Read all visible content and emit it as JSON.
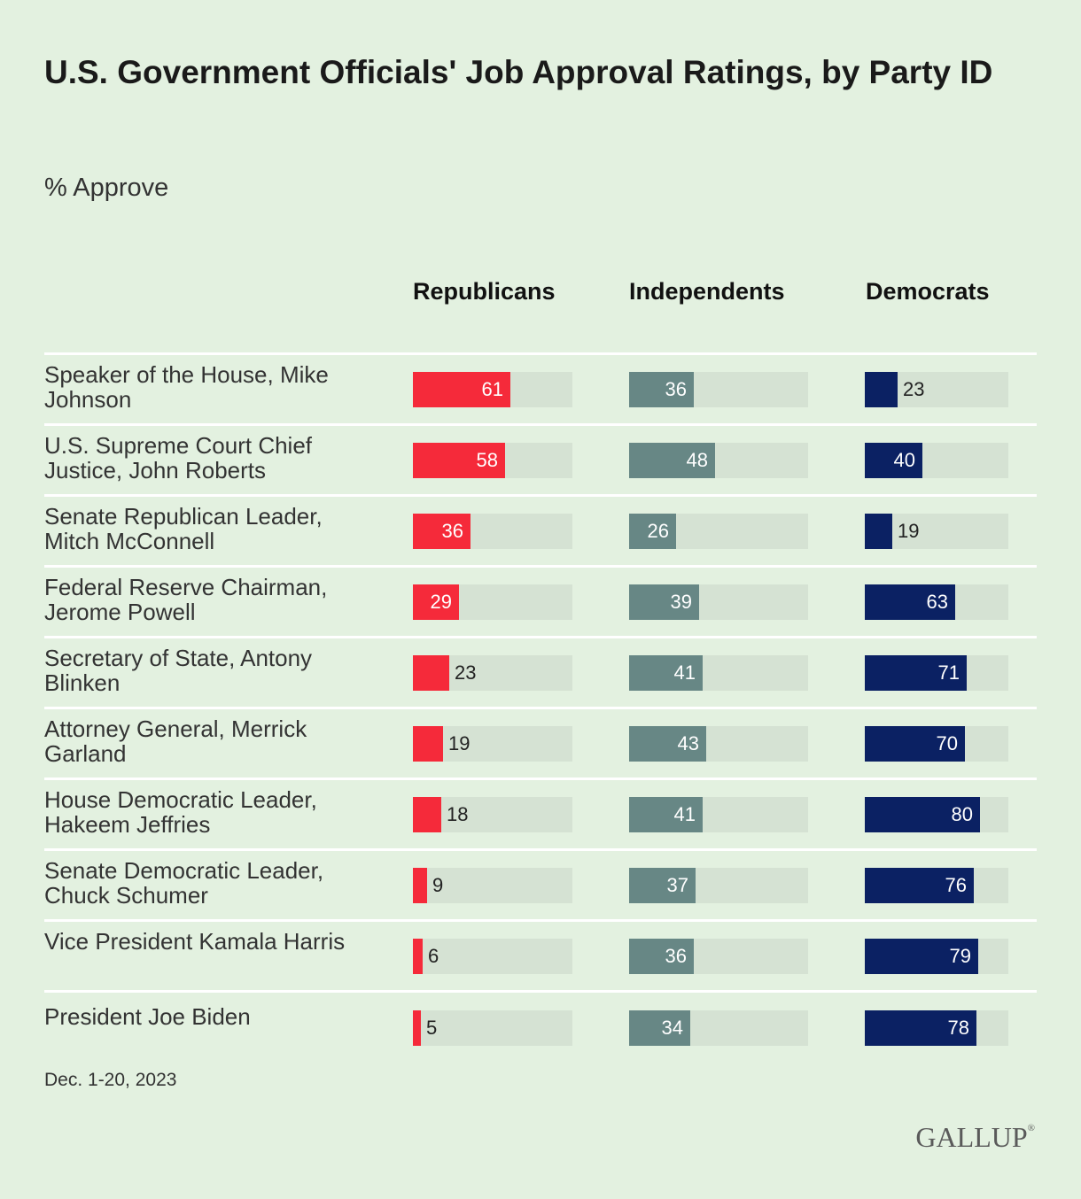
{
  "title": "U.S. Government Officials' Job Approval Ratings, by Party ID",
  "subtitle": "% Approve",
  "footer_date": "Dec. 1-20, 2023",
  "logo_text": "GALLUP",
  "logo_mark": "®",
  "colors": {
    "background": "#e3f1e0",
    "track": "#d5e2d3",
    "republicans": "#f52a3a",
    "independents": "#678785",
    "democrats": "#0b2163"
  },
  "chart_data": {
    "type": "bar",
    "title": "U.S. Government Officials' Job Approval Ratings, by Party ID",
    "subtitle": "% Approve",
    "xlim": [
      0,
      100
    ],
    "categories": [
      "Speaker of the House, Mike Johnson",
      "U.S. Supreme Court Chief Justice, John Roberts",
      "Senate Republican Leader, Mitch McConnell",
      "Federal Reserve Chairman, Jerome Powell",
      "Secretary of State, Antony Blinken",
      "Attorney General, Merrick Garland",
      "House Democratic Leader, Hakeem Jeffries",
      "Senate Democratic Leader, Chuck Schumer",
      "Vice President Kamala Harris",
      "President Joe Biden"
    ],
    "series": [
      {
        "name": "Republicans",
        "values": [
          61,
          58,
          36,
          29,
          23,
          19,
          18,
          9,
          6,
          5
        ]
      },
      {
        "name": "Independents",
        "values": [
          36,
          48,
          26,
          39,
          41,
          43,
          41,
          37,
          36,
          34
        ]
      },
      {
        "name": "Democrats",
        "values": [
          23,
          40,
          19,
          63,
          71,
          70,
          80,
          76,
          79,
          78
        ]
      }
    ]
  }
}
